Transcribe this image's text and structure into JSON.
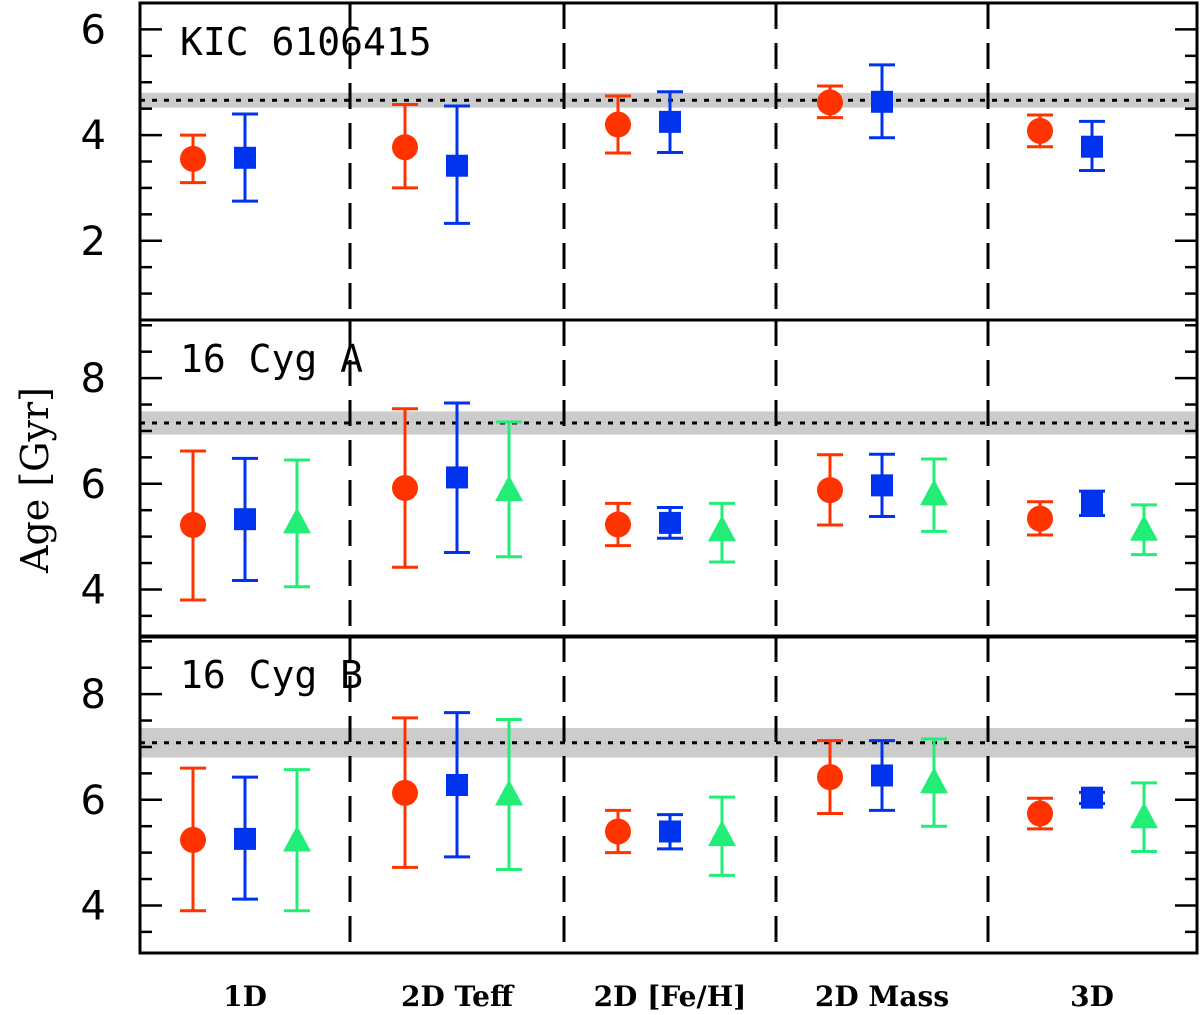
{
  "chart_data": {
    "type": "scatter",
    "ylabel": "Age [Gyr]",
    "categories": [
      "1D",
      "2D Teff",
      "2D [Fe/H]",
      "2D Mass",
      "3D"
    ],
    "series_style": [
      {
        "marker": "circle",
        "color": "#ff3300"
      },
      {
        "marker": "square",
        "color": "#0033ee"
      },
      {
        "marker": "triangle",
        "color": "#22ee77"
      }
    ],
    "band_color": "#cccccc",
    "panels": [
      {
        "label": "KIC 6106415",
        "ylim": [
          0.5,
          6.5
        ],
        "yticks": [
          2,
          4,
          6
        ],
        "minor_step": 0.5,
        "reference_age": 4.66,
        "band": [
          4.52,
          4.8
        ],
        "points": [
          [
            {
              "y": 3.55,
              "lo": 3.1,
              "hi": 4.0
            },
            {
              "y": 3.57,
              "lo": 2.75,
              "hi": 4.4
            }
          ],
          [
            {
              "y": 3.77,
              "lo": 3.0,
              "hi": 4.58
            },
            {
              "y": 3.42,
              "lo": 2.33,
              "hi": 4.55
            }
          ],
          [
            {
              "y": 4.2,
              "lo": 3.66,
              "hi": 4.74
            },
            {
              "y": 4.25,
              "lo": 3.67,
              "hi": 4.82
            }
          ],
          [
            {
              "y": 4.62,
              "lo": 4.33,
              "hi": 4.93
            },
            {
              "y": 4.63,
              "lo": 3.95,
              "hi": 5.33
            }
          ],
          [
            {
              "y": 4.08,
              "lo": 3.78,
              "hi": 4.38
            },
            {
              "y": 3.78,
              "lo": 3.33,
              "hi": 4.26
            }
          ]
        ]
      },
      {
        "label": "16 Cyg A",
        "ylim": [
          3.1,
          9.1
        ],
        "yticks": [
          4,
          6,
          8
        ],
        "minor_step": 0.5,
        "reference_age": 7.15,
        "band": [
          6.93,
          7.37
        ],
        "points": [
          [
            {
              "y": 5.22,
              "lo": 3.8,
              "hi": 6.62
            },
            {
              "y": 5.33,
              "lo": 4.17,
              "hi": 6.48
            },
            {
              "y": 5.27,
              "lo": 4.05,
              "hi": 6.45
            }
          ],
          [
            {
              "y": 5.92,
              "lo": 4.42,
              "hi": 7.42
            },
            {
              "y": 6.12,
              "lo": 4.7,
              "hi": 7.53
            },
            {
              "y": 5.88,
              "lo": 4.62,
              "hi": 7.17
            }
          ],
          [
            {
              "y": 5.23,
              "lo": 4.83,
              "hi": 5.63
            },
            {
              "y": 5.26,
              "lo": 4.97,
              "hi": 5.55
            },
            {
              "y": 5.12,
              "lo": 4.52,
              "hi": 5.63
            }
          ],
          [
            {
              "y": 5.88,
              "lo": 5.22,
              "hi": 6.55
            },
            {
              "y": 5.97,
              "lo": 5.38,
              "hi": 6.56
            },
            {
              "y": 5.8,
              "lo": 5.1,
              "hi": 6.47
            }
          ],
          [
            {
              "y": 5.34,
              "lo": 5.03,
              "hi": 5.66
            },
            {
              "y": 5.63,
              "lo": 5.4,
              "hi": 5.86
            },
            {
              "y": 5.13,
              "lo": 4.66,
              "hi": 5.6
            }
          ]
        ]
      },
      {
        "label": "16 Cyg B",
        "ylim": [
          3.1,
          9.1
        ],
        "yticks": [
          4,
          6,
          8
        ],
        "minor_step": 0.5,
        "reference_age": 7.08,
        "band": [
          6.8,
          7.36
        ],
        "points": [
          [
            {
              "y": 5.24,
              "lo": 3.9,
              "hi": 6.6
            },
            {
              "y": 5.26,
              "lo": 4.12,
              "hi": 6.43
            },
            {
              "y": 5.23,
              "lo": 3.9,
              "hi": 6.57
            }
          ],
          [
            {
              "y": 6.13,
              "lo": 4.72,
              "hi": 7.55
            },
            {
              "y": 6.28,
              "lo": 4.92,
              "hi": 7.65
            },
            {
              "y": 6.1,
              "lo": 4.68,
              "hi": 7.52
            }
          ],
          [
            {
              "y": 5.4,
              "lo": 5.0,
              "hi": 5.8
            },
            {
              "y": 5.4,
              "lo": 5.07,
              "hi": 5.72
            },
            {
              "y": 5.33,
              "lo": 4.57,
              "hi": 6.05
            }
          ],
          [
            {
              "y": 6.43,
              "lo": 5.74,
              "hi": 7.12
            },
            {
              "y": 6.46,
              "lo": 5.8,
              "hi": 7.12
            },
            {
              "y": 6.33,
              "lo": 5.5,
              "hi": 7.15
            }
          ],
          [
            {
              "y": 5.74,
              "lo": 5.45,
              "hi": 6.03
            },
            {
              "y": 6.04,
              "lo": 5.93,
              "hi": 6.14
            },
            {
              "y": 5.67,
              "lo": 5.02,
              "hi": 6.32
            }
          ]
        ]
      }
    ]
  }
}
